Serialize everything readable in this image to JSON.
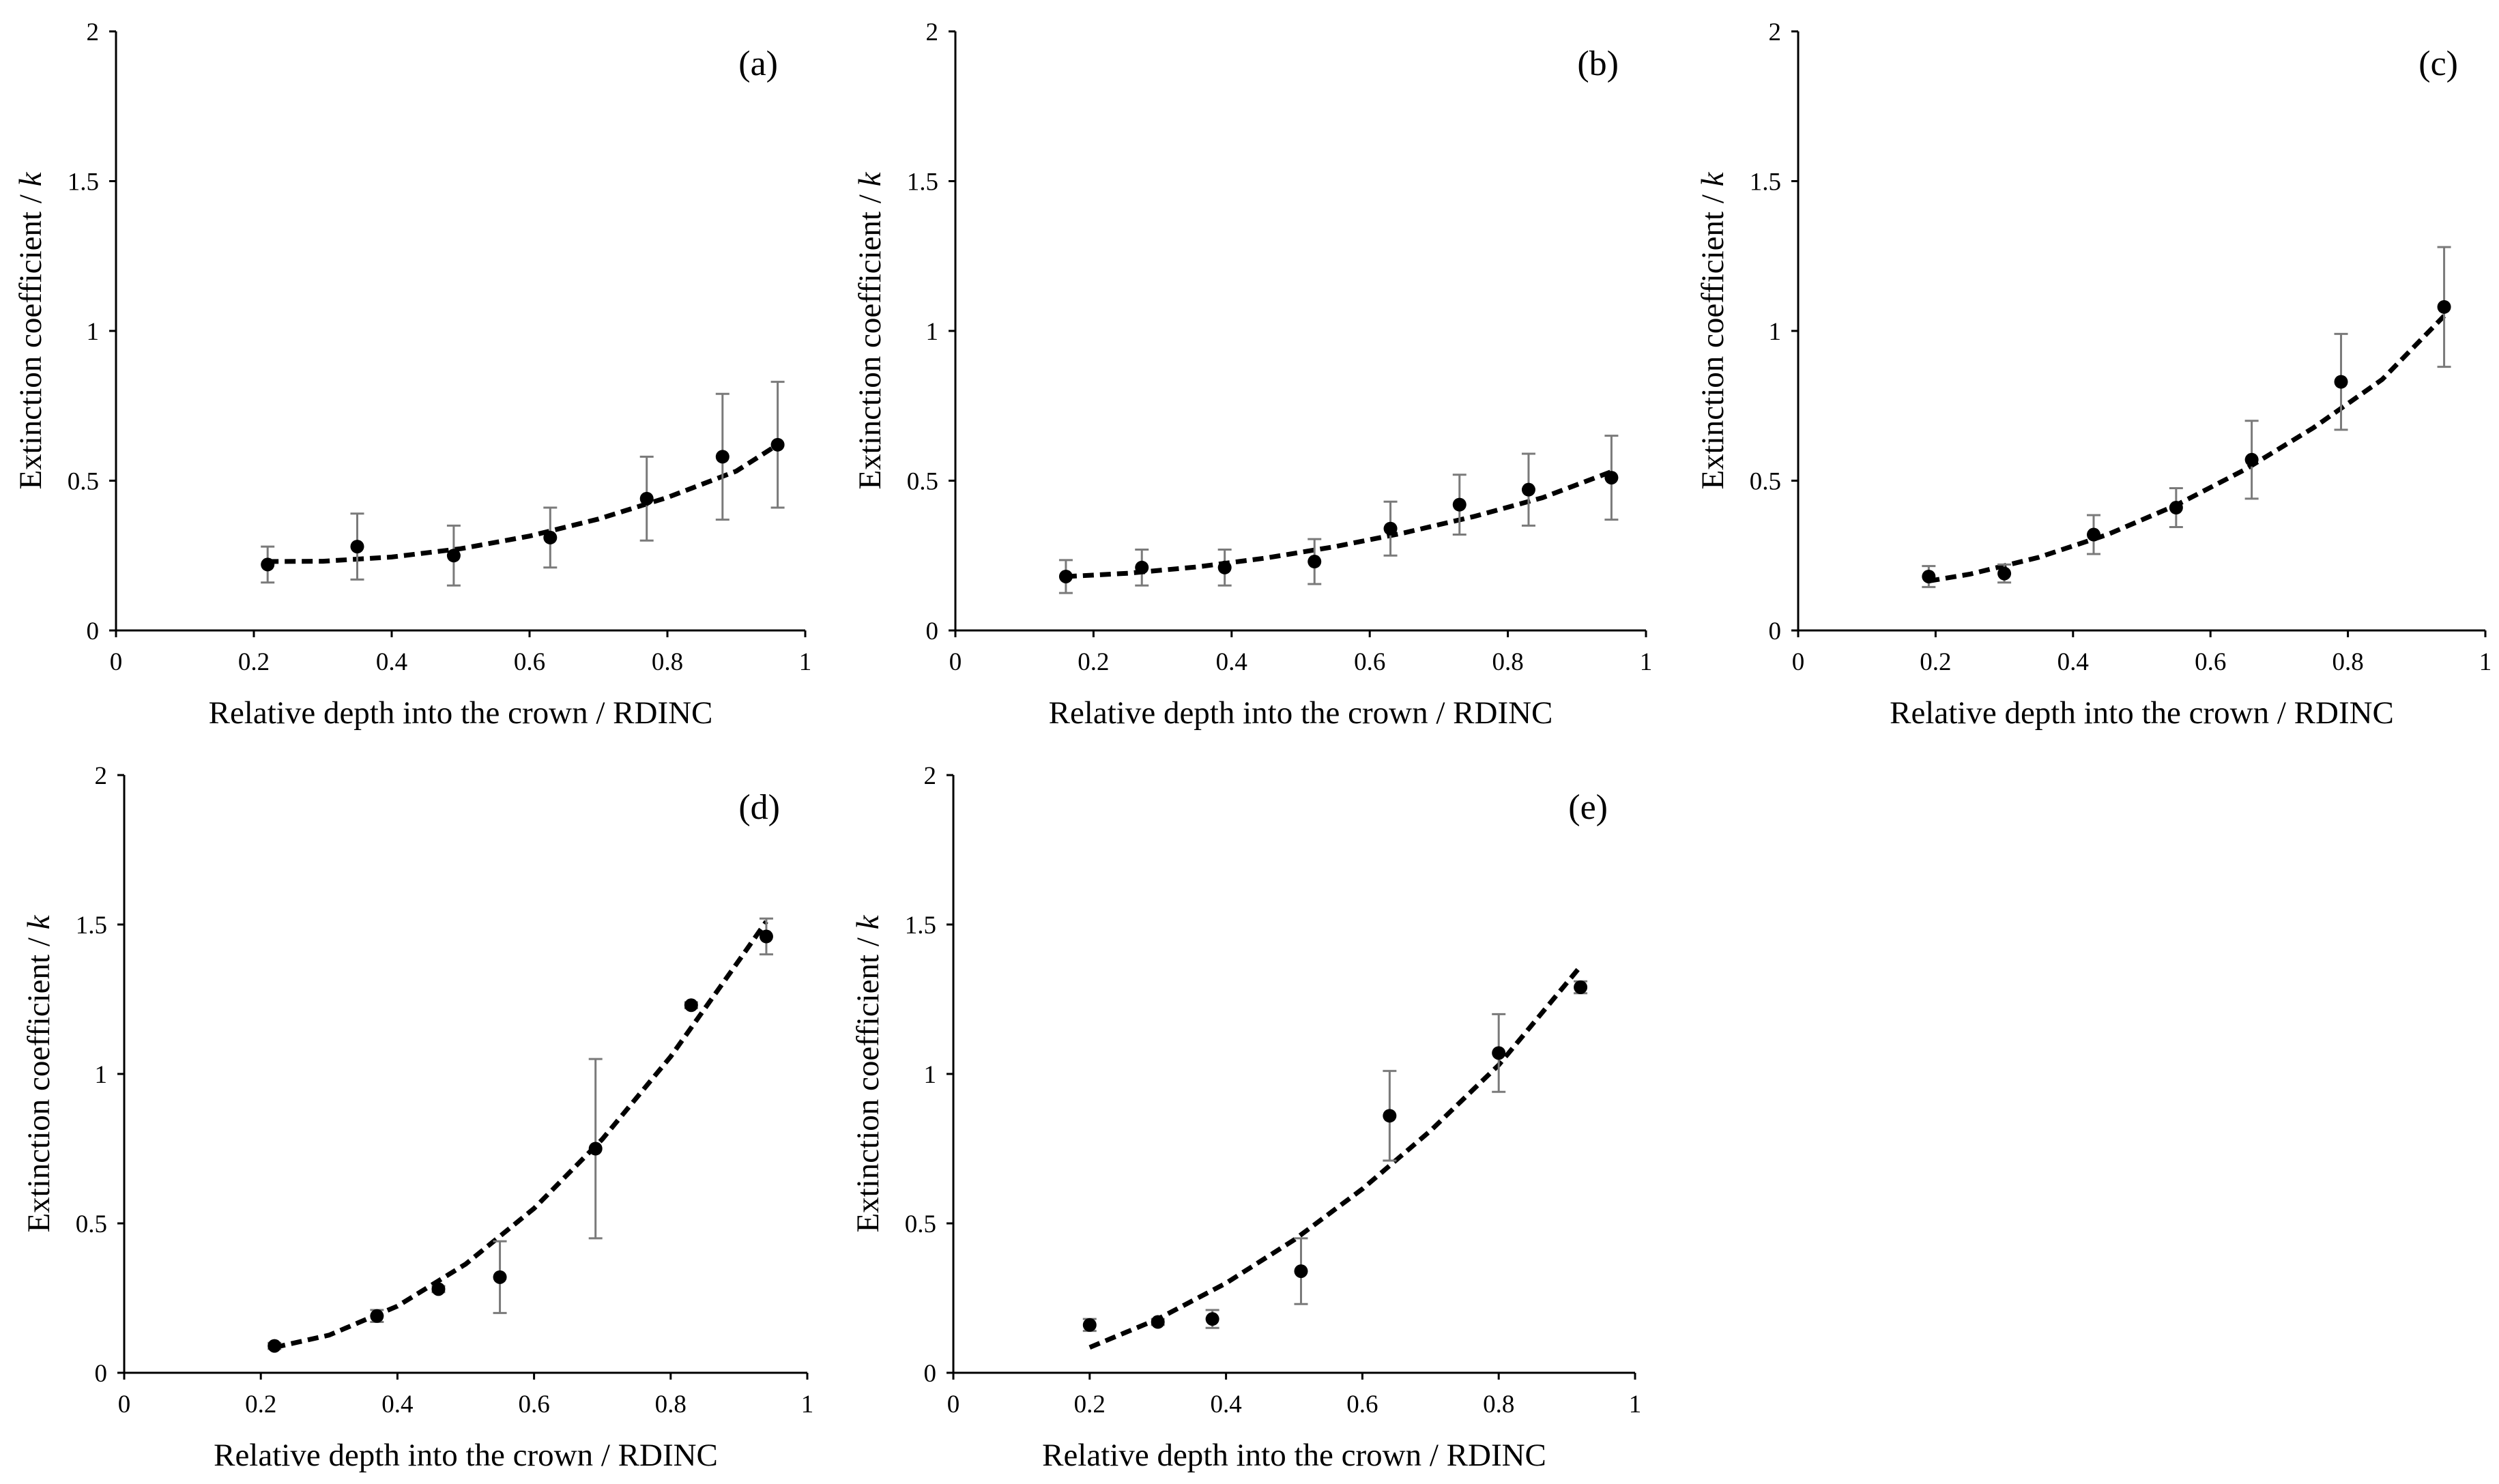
{
  "chart_data": [
    {
      "type": "scatter",
      "panel": "(a)",
      "xlabel": "Relative depth into the crown / RDINC",
      "ylabel_main": "Extinction coefficient / ",
      "ylabel_italic": "k",
      "xlim": [
        0,
        1
      ],
      "ylim": [
        0,
        2
      ],
      "xticks": [
        "0",
        "0.2",
        "0.4",
        "0.6",
        "0.8",
        "1"
      ],
      "yticks": [
        "0",
        "0.5",
        "1",
        "1.5",
        "2"
      ],
      "points": [
        {
          "x": 0.22,
          "y": 0.22,
          "err": 0.06
        },
        {
          "x": 0.35,
          "y": 0.28,
          "err": 0.11
        },
        {
          "x": 0.49,
          "y": 0.25,
          "err": 0.1
        },
        {
          "x": 0.63,
          "y": 0.31,
          "err": 0.1
        },
        {
          "x": 0.77,
          "y": 0.44,
          "err": 0.14
        },
        {
          "x": 0.88,
          "y": 0.58,
          "err": 0.21
        },
        {
          "x": 0.96,
          "y": 0.62,
          "err": 0.21
        }
      ],
      "fit": {
        "x": [
          0.22,
          0.3,
          0.4,
          0.5,
          0.6,
          0.7,
          0.8,
          0.9,
          0.96
        ],
        "y": [
          0.23,
          0.231,
          0.245,
          0.273,
          0.315,
          0.372,
          0.444,
          0.532,
          0.62
        ]
      }
    },
    {
      "type": "scatter",
      "panel": "(b)",
      "xlabel": "Relative depth into the crown / RDINC",
      "ylabel_main": "Extinction coefficient / ",
      "ylabel_italic": "k",
      "xlim": [
        0,
        1
      ],
      "ylim": [
        0,
        2
      ],
      "xticks": [
        "0",
        "0.2",
        "0.4",
        "0.6",
        "0.8",
        "1"
      ],
      "yticks": [
        "0",
        "0.5",
        "1",
        "1.5",
        "2"
      ],
      "points": [
        {
          "x": 0.16,
          "y": 0.18,
          "err": 0.055
        },
        {
          "x": 0.27,
          "y": 0.21,
          "err": 0.06
        },
        {
          "x": 0.39,
          "y": 0.21,
          "err": 0.06
        },
        {
          "x": 0.52,
          "y": 0.23,
          "err": 0.075
        },
        {
          "x": 0.63,
          "y": 0.34,
          "err": 0.09
        },
        {
          "x": 0.73,
          "y": 0.42,
          "err": 0.1
        },
        {
          "x": 0.83,
          "y": 0.47,
          "err": 0.12
        },
        {
          "x": 0.95,
          "y": 0.51,
          "err": 0.14
        }
      ],
      "fit": {
        "x": [
          0.16,
          0.25,
          0.35,
          0.45,
          0.55,
          0.65,
          0.75,
          0.85,
          0.95
        ],
        "y": [
          0.18,
          0.191,
          0.212,
          0.242,
          0.28,
          0.326,
          0.38,
          0.443,
          0.53
        ]
      }
    },
    {
      "type": "scatter",
      "panel": "(c)",
      "xlabel": "Relative depth into the crown / RDINC",
      "ylabel_main": "Extinction coefficient / ",
      "ylabel_italic": "k",
      "xlim": [
        0,
        1
      ],
      "ylim": [
        0,
        2
      ],
      "xticks": [
        "0",
        "0.2",
        "0.4",
        "0.6",
        "0.8",
        "1"
      ],
      "yticks": [
        "0",
        "0.5",
        "1",
        "1.5",
        "2"
      ],
      "points": [
        {
          "x": 0.19,
          "y": 0.18,
          "err": 0.035
        },
        {
          "x": 0.3,
          "y": 0.19,
          "err": 0.03
        },
        {
          "x": 0.43,
          "y": 0.32,
          "err": 0.065
        },
        {
          "x": 0.55,
          "y": 0.41,
          "err": 0.065
        },
        {
          "x": 0.66,
          "y": 0.57,
          "err": 0.13
        },
        {
          "x": 0.79,
          "y": 0.83,
          "err": 0.16
        },
        {
          "x": 0.94,
          "y": 1.08,
          "err": 0.2
        }
      ],
      "fit": {
        "x": [
          0.19,
          0.25,
          0.35,
          0.45,
          0.55,
          0.65,
          0.75,
          0.85,
          0.94
        ],
        "y": [
          0.165,
          0.188,
          0.244,
          0.32,
          0.418,
          0.537,
          0.677,
          0.838,
          1.05
        ]
      }
    },
    {
      "type": "scatter",
      "panel": "(d)",
      "xlabel": "Relative depth into the crown / RDINC",
      "ylabel_main": "Extinction coefficient / ",
      "ylabel_italic": "k",
      "xlim": [
        0,
        1
      ],
      "ylim": [
        0,
        2
      ],
      "xticks": [
        "0",
        "0.2",
        "0.4",
        "0.6",
        "0.8",
        "1"
      ],
      "yticks": [
        "0",
        "0.5",
        "1",
        "1.5",
        "2"
      ],
      "points": [
        {
          "x": 0.22,
          "y": 0.09,
          "err": 0.01
        },
        {
          "x": 0.37,
          "y": 0.19,
          "err": 0.02
        },
        {
          "x": 0.46,
          "y": 0.28,
          "err": 0.01
        },
        {
          "x": 0.55,
          "y": 0.32,
          "err": 0.12
        },
        {
          "x": 0.69,
          "y": 0.75,
          "err": 0.3
        },
        {
          "x": 0.83,
          "y": 1.23,
          "err": 0.01
        },
        {
          "x": 0.94,
          "y": 1.46,
          "err": 0.06
        }
      ],
      "fit": {
        "x": [
          0.22,
          0.3,
          0.4,
          0.5,
          0.6,
          0.7,
          0.8,
          0.9,
          0.94
        ],
        "y": [
          0.085,
          0.126,
          0.223,
          0.364,
          0.55,
          0.782,
          1.058,
          1.38,
          1.51
        ]
      }
    },
    {
      "type": "scatter",
      "panel": "(e)",
      "xlabel": "Relative depth into the crown / RDINC",
      "ylabel_main": "Extinction coefficient / ",
      "ylabel_italic": "k",
      "xlim": [
        0,
        1
      ],
      "ylim": [
        0,
        2
      ],
      "xticks": [
        "0",
        "0.2",
        "0.4",
        "0.6",
        "0.8",
        "1"
      ],
      "yticks": [
        "0",
        "0.5",
        "1",
        "1.5",
        "2"
      ],
      "points": [
        {
          "x": 0.2,
          "y": 0.16,
          "err": 0.02
        },
        {
          "x": 0.3,
          "y": 0.17,
          "err": 0.01
        },
        {
          "x": 0.38,
          "y": 0.18,
          "err": 0.03
        },
        {
          "x": 0.51,
          "y": 0.34,
          "err": 0.11
        },
        {
          "x": 0.64,
          "y": 0.86,
          "err": 0.15
        },
        {
          "x": 0.8,
          "y": 1.07,
          "err": 0.13
        },
        {
          "x": 0.92,
          "y": 1.29,
          "err": 0.02
        }
      ],
      "fit": {
        "x": [
          0.2,
          0.3,
          0.4,
          0.5,
          0.6,
          0.7,
          0.8,
          0.92
        ],
        "y": [
          0.085,
          0.18,
          0.3,
          0.445,
          0.615,
          0.81,
          1.03,
          1.36
        ]
      }
    }
  ]
}
